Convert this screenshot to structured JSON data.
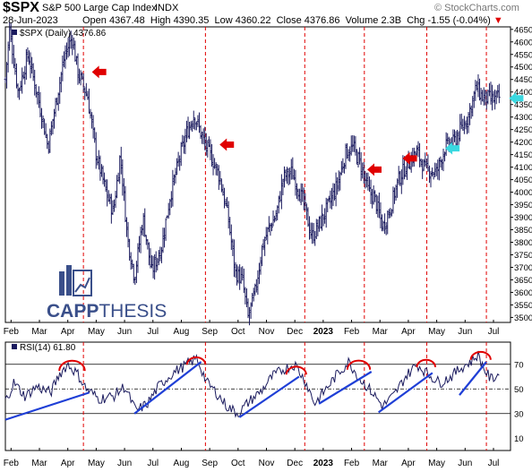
{
  "header": {
    "symbol": "$SPX",
    "name": "S&P 500 Large Cap Index",
    "exchange": "INDX",
    "watermark": "© StockCharts.com",
    "date": "28-Jun-2023",
    "open_label": "Open",
    "open": "4367.48",
    "high_label": "High",
    "high": "4390.35",
    "low_label": "Low",
    "low": "4360.22",
    "close_label": "Close",
    "close": "4376.86",
    "volume_label": "Volume",
    "volume": "2.3B",
    "chg_label": "Chg",
    "chg": "-1.55 (-0.04%)",
    "chg_arrow": "▼"
  },
  "logo": {
    "text_bold": "CAPP",
    "text_light": "THESIS"
  },
  "colors": {
    "price": "#1a1a5e",
    "trend": "#1f3fd6",
    "arc": "#e00000",
    "vline": "#e00000",
    "red_arrow": "#e00000",
    "cyan_arrow": "#3ad8e0",
    "logo": "#3a4f8a"
  },
  "chart_data": [
    {
      "type": "bar",
      "title": "$SPX (Daily) 4376.86",
      "legend": "$SPX (Daily) 4376.86",
      "ylim": [
        3480,
        4660
      ],
      "y_ticks": [
        3500,
        3550,
        3600,
        3650,
        3700,
        3750,
        3800,
        3850,
        3900,
        3950,
        4000,
        4050,
        4100,
        4150,
        4200,
        4250,
        4300,
        4350,
        4400,
        4450,
        4500,
        4550,
        4600,
        4650
      ],
      "x_ticks": [
        {
          "label": "Feb",
          "x": 0.2
        },
        {
          "label": "Mar",
          "x": 1.2
        },
        {
          "label": "Apr",
          "x": 2.2
        },
        {
          "label": "May",
          "x": 3.2
        },
        {
          "label": "Jun",
          "x": 4.2
        },
        {
          "label": "Jul",
          "x": 5.2
        },
        {
          "label": "Aug",
          "x": 6.2
        },
        {
          "label": "Sep",
          "x": 7.2
        },
        {
          "label": "Oct",
          "x": 8.2
        },
        {
          "label": "Nov",
          "x": 9.2
        },
        {
          "label": "Dec",
          "x": 10.2
        },
        {
          "label": "2023",
          "x": 11.2,
          "bold": true
        },
        {
          "label": "Feb",
          "x": 12.2
        },
        {
          "label": "Mar",
          "x": 13.2
        },
        {
          "label": "Apr",
          "x": 14.2
        },
        {
          "label": "May",
          "x": 15.2
        },
        {
          "label": "Jun",
          "x": 16.2
        },
        {
          "label": "Jul",
          "x": 17.2
        }
      ],
      "x_range": [
        0,
        17.8
      ],
      "anchors": [
        [
          0,
          4450
        ],
        [
          0.15,
          4650
        ],
        [
          0.45,
          4400
        ],
        [
          0.8,
          4550
        ],
        [
          1.3,
          4300
        ],
        [
          1.5,
          4180
        ],
        [
          1.85,
          4400
        ],
        [
          2.1,
          4550
        ],
        [
          2.35,
          4620
        ],
        [
          2.55,
          4480
        ],
        [
          2.9,
          4380
        ],
        [
          3.2,
          4150
        ],
        [
          3.55,
          4000
        ],
        [
          3.8,
          3920
        ],
        [
          4.05,
          4150
        ],
        [
          4.3,
          3820
        ],
        [
          4.55,
          3660
        ],
        [
          4.85,
          3900
        ],
        [
          5.15,
          3680
        ],
        [
          5.5,
          3780
        ],
        [
          5.8,
          3980
        ],
        [
          6.1,
          4120
        ],
        [
          6.4,
          4240
        ],
        [
          6.65,
          4310
        ],
        [
          7.0,
          4200
        ],
        [
          7.3,
          4130
        ],
        [
          7.55,
          4060
        ],
        [
          7.85,
          3900
        ],
        [
          8.1,
          3680
        ],
        [
          8.35,
          3650
        ],
        [
          8.55,
          3500
        ],
        [
          8.8,
          3600
        ],
        [
          9.05,
          3780
        ],
        [
          9.3,
          3860
        ],
        [
          9.55,
          3910
        ],
        [
          9.8,
          4060
        ],
        [
          10.1,
          4080
        ],
        [
          10.5,
          3960
        ],
        [
          10.8,
          3820
        ],
        [
          11.1,
          3880
        ],
        [
          11.4,
          3950
        ],
        [
          11.7,
          4030
        ],
        [
          12.0,
          4160
        ],
        [
          12.25,
          4180
        ],
        [
          12.55,
          4100
        ],
        [
          12.8,
          4000
        ],
        [
          13.0,
          3980
        ],
        [
          13.3,
          3860
        ],
        [
          13.55,
          3930
        ],
        [
          13.85,
          4050
        ],
        [
          14.2,
          4120
        ],
        [
          14.5,
          4160
        ],
        [
          14.8,
          4090
        ],
        [
          15.2,
          4080
        ],
        [
          15.5,
          4180
        ],
        [
          15.8,
          4200
        ],
        [
          16.0,
          4240
        ],
        [
          16.3,
          4300
        ],
        [
          16.6,
          4420
        ],
        [
          16.8,
          4380
        ],
        [
          17.2,
          4370
        ],
        [
          17.4,
          4376.86
        ]
      ],
      "annotations": {
        "red_arrows": [
          {
            "x": 3.05,
            "y": 4480
          },
          {
            "x": 7.55,
            "y": 4190
          },
          {
            "x": 12.75,
            "y": 4090
          },
          {
            "x": 14.0,
            "y": 4135
          }
        ],
        "cyan_arrows": [
          {
            "x": 15.5,
            "y": 4175
          },
          {
            "x": 17.75,
            "y": 4375
          }
        ]
      },
      "vlines_x": [
        2.75,
        7.05,
        10.55,
        12.65,
        14.85,
        16.95
      ]
    },
    {
      "type": "line",
      "title": "RSI(14) 61.80",
      "legend": "RSI(14) 61.80",
      "ylim": [
        0,
        88
      ],
      "y_ticks": [
        10,
        30,
        50,
        70
      ],
      "ref_levels": [
        30,
        50,
        70
      ],
      "anchors": [
        [
          0,
          40
        ],
        [
          0.3,
          55
        ],
        [
          0.7,
          44
        ],
        [
          1.1,
          52
        ],
        [
          1.6,
          47
        ],
        [
          1.9,
          62
        ],
        [
          2.2,
          70
        ],
        [
          2.55,
          62
        ],
        [
          2.85,
          50
        ],
        [
          3.3,
          42
        ],
        [
          3.8,
          44
        ],
        [
          4.2,
          52
        ],
        [
          4.6,
          32
        ],
        [
          5.0,
          38
        ],
        [
          5.4,
          52
        ],
        [
          5.9,
          63
        ],
        [
          6.4,
          70
        ],
        [
          6.75,
          75
        ],
        [
          7.1,
          55
        ],
        [
          7.4,
          48
        ],
        [
          7.8,
          36
        ],
        [
          8.2,
          30
        ],
        [
          8.6,
          40
        ],
        [
          9.0,
          48
        ],
        [
          9.4,
          60
        ],
        [
          9.8,
          66
        ],
        [
          10.2,
          70
        ],
        [
          10.6,
          55
        ],
        [
          10.9,
          38
        ],
        [
          11.3,
          50
        ],
        [
          11.7,
          62
        ],
        [
          12.1,
          72
        ],
        [
          12.5,
          58
        ],
        [
          12.9,
          48
        ],
        [
          13.3,
          36
        ],
        [
          13.7,
          45
        ],
        [
          14.1,
          60
        ],
        [
          14.5,
          70
        ],
        [
          14.9,
          62
        ],
        [
          15.3,
          55
        ],
        [
          15.7,
          60
        ],
        [
          16.1,
          68
        ],
        [
          16.4,
          72
        ],
        [
          16.65,
          78
        ],
        [
          16.9,
          65
        ],
        [
          17.1,
          58
        ],
        [
          17.4,
          61.8
        ]
      ],
      "trendlines": [
        [
          [
            0,
            25
          ],
          [
            2.95,
            47
          ]
        ],
        [
          [
            4.55,
            30
          ],
          [
            6.9,
            72
          ]
        ],
        [
          [
            8.25,
            27
          ],
          [
            10.35,
            60
          ]
        ],
        [
          [
            11.05,
            38
          ],
          [
            12.9,
            64
          ]
        ],
        [
          [
            13.15,
            31
          ],
          [
            15.05,
            63
          ]
        ],
        [
          [
            16.0,
            45
          ],
          [
            16.95,
            72
          ]
        ]
      ],
      "arcs": [
        [
          1.9,
          2.8,
          69
        ],
        [
          6.4,
          7.05,
          74
        ],
        [
          9.9,
          10.6,
          66
        ],
        [
          12.05,
          12.85,
          70
        ],
        [
          14.5,
          15.15,
          72
        ],
        [
          16.4,
          17.1,
          78
        ]
      ]
    }
  ]
}
